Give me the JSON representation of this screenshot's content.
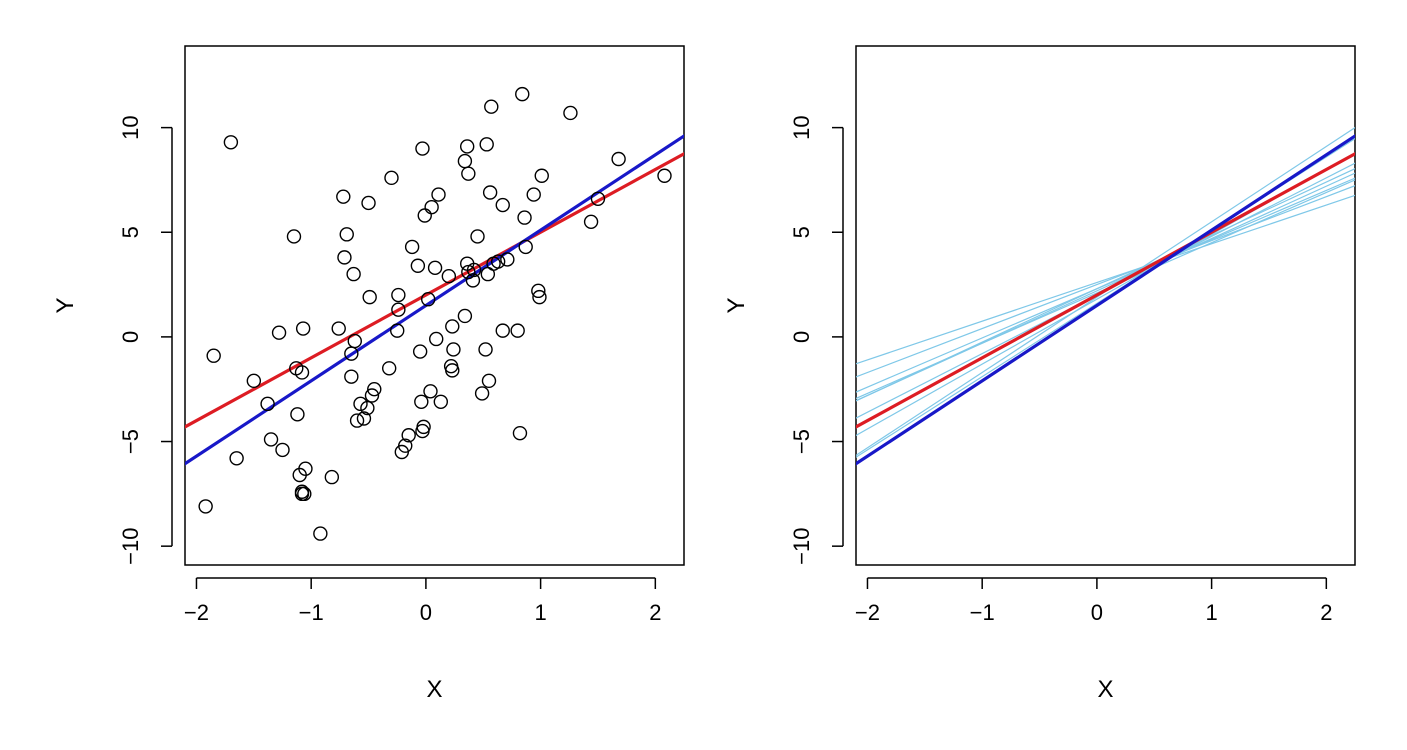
{
  "chart_data": [
    {
      "type": "scatter",
      "xlabel": "X",
      "ylabel": "Y",
      "xlim": [
        -2.1,
        2.25
      ],
      "ylim": [
        -10.9,
        13.9
      ],
      "xticks": [
        -2,
        -1,
        0,
        1,
        2
      ],
      "xtick_labels": [
        "−2",
        "−1",
        "0",
        "1",
        "2"
      ],
      "yticks": [
        -10,
        -5,
        0,
        5,
        10
      ],
      "ytick_labels": [
        "−10",
        "−5",
        "0",
        "5",
        "10"
      ],
      "grid": false,
      "legend": "none",
      "points": {
        "color": "#000000",
        "x": [
          -1.92,
          -1.85,
          -1.7,
          -1.65,
          -1.5,
          -1.38,
          -1.35,
          -1.28,
          -1.25,
          -1.15,
          -1.13,
          -1.1,
          -1.12,
          -1.08,
          -1.08,
          -1.08,
          -1.07,
          -1.06,
          -1.05,
          -0.92,
          -0.82,
          -0.76,
          -0.72,
          -0.71,
          -0.69,
          -0.65,
          -0.65,
          -0.63,
          -0.62,
          -0.6,
          -0.57,
          -0.54,
          -0.51,
          -0.5,
          -0.49,
          -0.47,
          -0.45,
          -0.32,
          -0.3,
          -0.25,
          -0.24,
          -0.24,
          -0.21,
          -0.18,
          -0.15,
          -0.12,
          -0.07,
          -0.05,
          -0.04,
          -0.03,
          -0.03,
          -0.02,
          -0.01,
          0.02,
          0.04,
          0.05,
          0.08,
          0.09,
          0.11,
          0.13,
          0.2,
          0.22,
          0.23,
          0.23,
          0.24,
          0.34,
          0.34,
          0.36,
          0.36,
          0.37,
          0.37,
          0.41,
          0.42,
          0.45,
          0.49,
          0.52,
          0.53,
          0.54,
          0.55,
          0.56,
          0.57,
          0.59,
          0.63,
          0.67,
          0.67,
          0.71,
          0.8,
          0.82,
          0.84,
          0.86,
          0.87,
          0.94,
          0.98,
          0.99,
          1.01,
          1.26,
          1.44,
          1.5,
          1.68,
          2.08
        ],
        "y": [
          -8.1,
          -0.9,
          9.3,
          -5.8,
          -2.1,
          -3.2,
          -4.9,
          0.2,
          -5.4,
          4.8,
          -1.5,
          -6.6,
          -3.7,
          -1.7,
          -7.4,
          -7.5,
          0.4,
          -7.5,
          -6.3,
          -9.4,
          -6.7,
          0.4,
          6.7,
          3.8,
          4.9,
          -1.9,
          -0.8,
          3.0,
          -0.2,
          -4.0,
          -3.2,
          -3.9,
          -3.4,
          6.4,
          1.9,
          -2.8,
          -2.5,
          -1.5,
          7.6,
          0.3,
          1.3,
          2.0,
          -5.5,
          -5.2,
          -4.7,
          4.3,
          3.4,
          -0.7,
          -3.1,
          9.0,
          -4.5,
          -4.3,
          5.8,
          1.8,
          -2.6,
          6.2,
          3.3,
          -0.1,
          6.8,
          -3.1,
          2.9,
          -1.4,
          -1.6,
          0.5,
          -0.6,
          1.0,
          8.4,
          3.5,
          9.1,
          3.1,
          7.8,
          2.7,
          3.2,
          4.8,
          -2.7,
          -0.6,
          9.2,
          3.0,
          -2.1,
          6.9,
          11.0,
          3.5,
          3.6,
          6.3,
          0.3,
          3.7,
          0.3,
          -4.6,
          11.6,
          5.7,
          4.3,
          6.8,
          2.2,
          1.9,
          7.7,
          10.7,
          5.5,
          6.6,
          8.5,
          7.7
        ]
      },
      "lines": [
        {
          "name": "",
          "color": "#dd1c23",
          "width": 3.2,
          "intercept": 2.0,
          "slope": 3.0
        },
        {
          "name": "",
          "color": "#1818c8",
          "width": 3.2,
          "intercept": 1.5,
          "slope": 3.6
        }
      ]
    },
    {
      "type": "line",
      "xlabel": "X",
      "ylabel": "Y",
      "xlim": [
        -2.1,
        2.25
      ],
      "ylim": [
        -10.9,
        13.9
      ],
      "xticks": [
        -2,
        -1,
        0,
        1,
        2
      ],
      "xtick_labels": [
        "−2",
        "−1",
        "0",
        "1",
        "2"
      ],
      "yticks": [
        -10,
        -5,
        0,
        5,
        10
      ],
      "ytick_labels": [
        "−10",
        "−5",
        "0",
        "5",
        "10"
      ],
      "grid": false,
      "legend": "none",
      "lines": [
        {
          "name": "",
          "color": "#7fc8e8",
          "width": 1.2,
          "intercept": 2.3,
          "slope": 2.35
        },
        {
          "name": "",
          "color": "#7fc8e8",
          "width": 1.2,
          "intercept": 2.2,
          "slope": 2.5
        },
        {
          "name": "",
          "color": "#7fc8e8",
          "width": 1.2,
          "intercept": 2.0,
          "slope": 2.8
        },
        {
          "name": "",
          "color": "#7fc8e8",
          "width": 1.2,
          "intercept": 1.8,
          "slope": 3.1
        },
        {
          "name": "",
          "color": "#7fc8e8",
          "width": 1.2,
          "intercept": 2.5,
          "slope": 2.1
        },
        {
          "name": "",
          "color": "#7fc8e8",
          "width": 1.2,
          "intercept": 1.6,
          "slope": 3.5
        },
        {
          "name": "",
          "color": "#7fc8e8",
          "width": 1.2,
          "intercept": 1.9,
          "slope": 3.6
        },
        {
          "name": "",
          "color": "#7fc8e8",
          "width": 1.2,
          "intercept": 2.6,
          "slope": 1.85
        },
        {
          "name": "",
          "color": "#7fc8e8",
          "width": 1.2,
          "intercept": 2.3,
          "slope": 2.55
        },
        {
          "name": "",
          "color": "#7fc8e8",
          "width": 1.2,
          "intercept": 2.1,
          "slope": 2.4
        },
        {
          "name": "",
          "color": "#dd1c23",
          "width": 3.2,
          "intercept": 2.0,
          "slope": 3.0
        },
        {
          "name": "",
          "color": "#1818c8",
          "width": 3.2,
          "intercept": 1.5,
          "slope": 3.6
        }
      ]
    }
  ]
}
